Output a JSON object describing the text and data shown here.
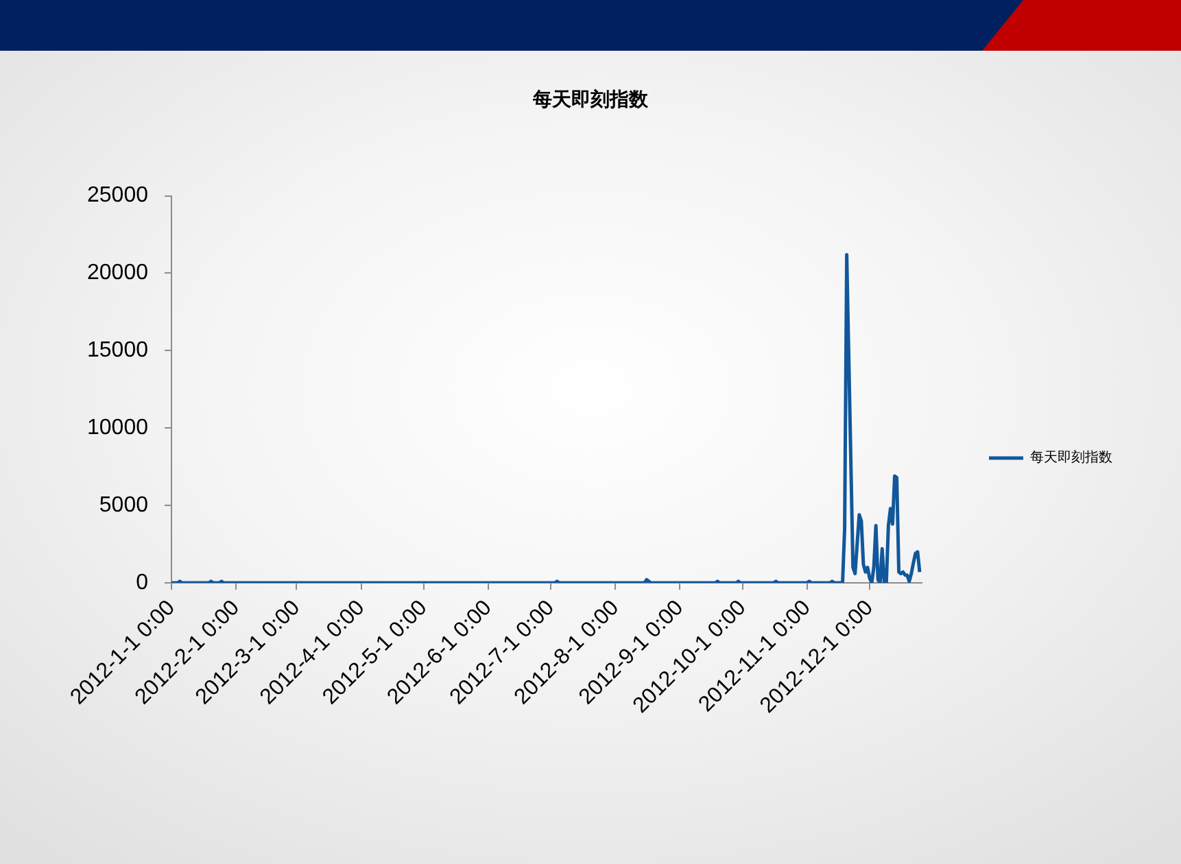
{
  "chart_data": {
    "type": "line",
    "title": "每天即刻指数",
    "x": [
      "2012-01-01",
      "2012-01-04",
      "2012-01-05",
      "2012-01-06",
      "2012-01-19",
      "2012-01-20",
      "2012-01-21",
      "2012-01-24",
      "2012-01-25",
      "2012-01-26",
      "2012-07-03",
      "2012-07-04",
      "2012-07-05",
      "2012-08-15",
      "2012-08-16",
      "2012-08-17",
      "2012-08-18",
      "2012-09-18",
      "2012-09-19",
      "2012-09-20",
      "2012-09-28",
      "2012-09-29",
      "2012-09-30",
      "2012-10-16",
      "2012-10-17",
      "2012-10-18",
      "2012-11-01",
      "2012-11-02",
      "2012-11-03",
      "2012-11-12",
      "2012-11-13",
      "2012-11-14",
      "2012-11-18",
      "2012-11-19",
      "2012-11-20",
      "2012-11-23",
      "2012-11-24",
      "2012-11-26",
      "2012-11-27",
      "2012-11-28",
      "2012-11-29",
      "2012-11-30",
      "2012-12-01",
      "2012-12-02",
      "2012-12-03",
      "2012-12-04",
      "2012-12-05",
      "2012-12-06",
      "2012-12-07",
      "2012-12-08",
      "2012-12-09",
      "2012-12-10",
      "2012-12-11",
      "2012-12-12",
      "2012-12-13",
      "2012-12-14",
      "2012-12-15",
      "2012-12-16",
      "2012-12-17",
      "2012-12-18",
      "2012-12-19",
      "2012-12-20",
      "2012-12-21",
      "2012-12-22",
      "2012-12-23",
      "2012-12-24",
      "2012-12-25"
    ],
    "series": [
      {
        "name": "每天即刻指数",
        "color": "#11579b",
        "values": [
          0,
          0,
          100,
          0,
          0,
          100,
          0,
          0,
          100,
          0,
          0,
          100,
          0,
          0,
          200,
          100,
          0,
          0,
          100,
          0,
          0,
          100,
          0,
          0,
          100,
          0,
          0,
          100,
          0,
          0,
          100,
          0,
          0,
          3500,
          21200,
          1000,
          600,
          4400,
          4000,
          1200,
          700,
          1000,
          300,
          0,
          1000,
          3700,
          200,
          0,
          2200,
          0,
          0,
          3700,
          4800,
          3800,
          6900,
          6800,
          700,
          600,
          700,
          500,
          500,
          100,
          600,
          1300,
          1900,
          2000,
          700
        ]
      }
    ],
    "xlim": [
      "2012-01-01",
      "2012-12-26"
    ],
    "xticks": [
      {
        "value": "2012-01-01",
        "label": "2012-1-1 0:00"
      },
      {
        "value": "2012-02-01",
        "label": "2012-2-1 0:00"
      },
      {
        "value": "2012-03-01",
        "label": "2012-3-1 0:00"
      },
      {
        "value": "2012-04-01",
        "label": "2012-4-1 0:00"
      },
      {
        "value": "2012-05-01",
        "label": "2012-5-1 0:00"
      },
      {
        "value": "2012-06-01",
        "label": "2012-6-1 0:00"
      },
      {
        "value": "2012-07-01",
        "label": "2012-7-1 0:00"
      },
      {
        "value": "2012-08-01",
        "label": "2012-8-1 0:00"
      },
      {
        "value": "2012-09-01",
        "label": "2012-9-1 0:00"
      },
      {
        "value": "2012-10-01",
        "label": "2012-10-1 0:00"
      },
      {
        "value": "2012-11-01",
        "label": "2012-11-1 0:00"
      },
      {
        "value": "2012-12-01",
        "label": "2012-12-1 0:00"
      }
    ],
    "ylim": [
      0,
      25000
    ],
    "yticks": [
      0,
      5000,
      10000,
      15000,
      20000,
      25000
    ],
    "grid": false,
    "legend": "right",
    "marker": "none"
  }
}
